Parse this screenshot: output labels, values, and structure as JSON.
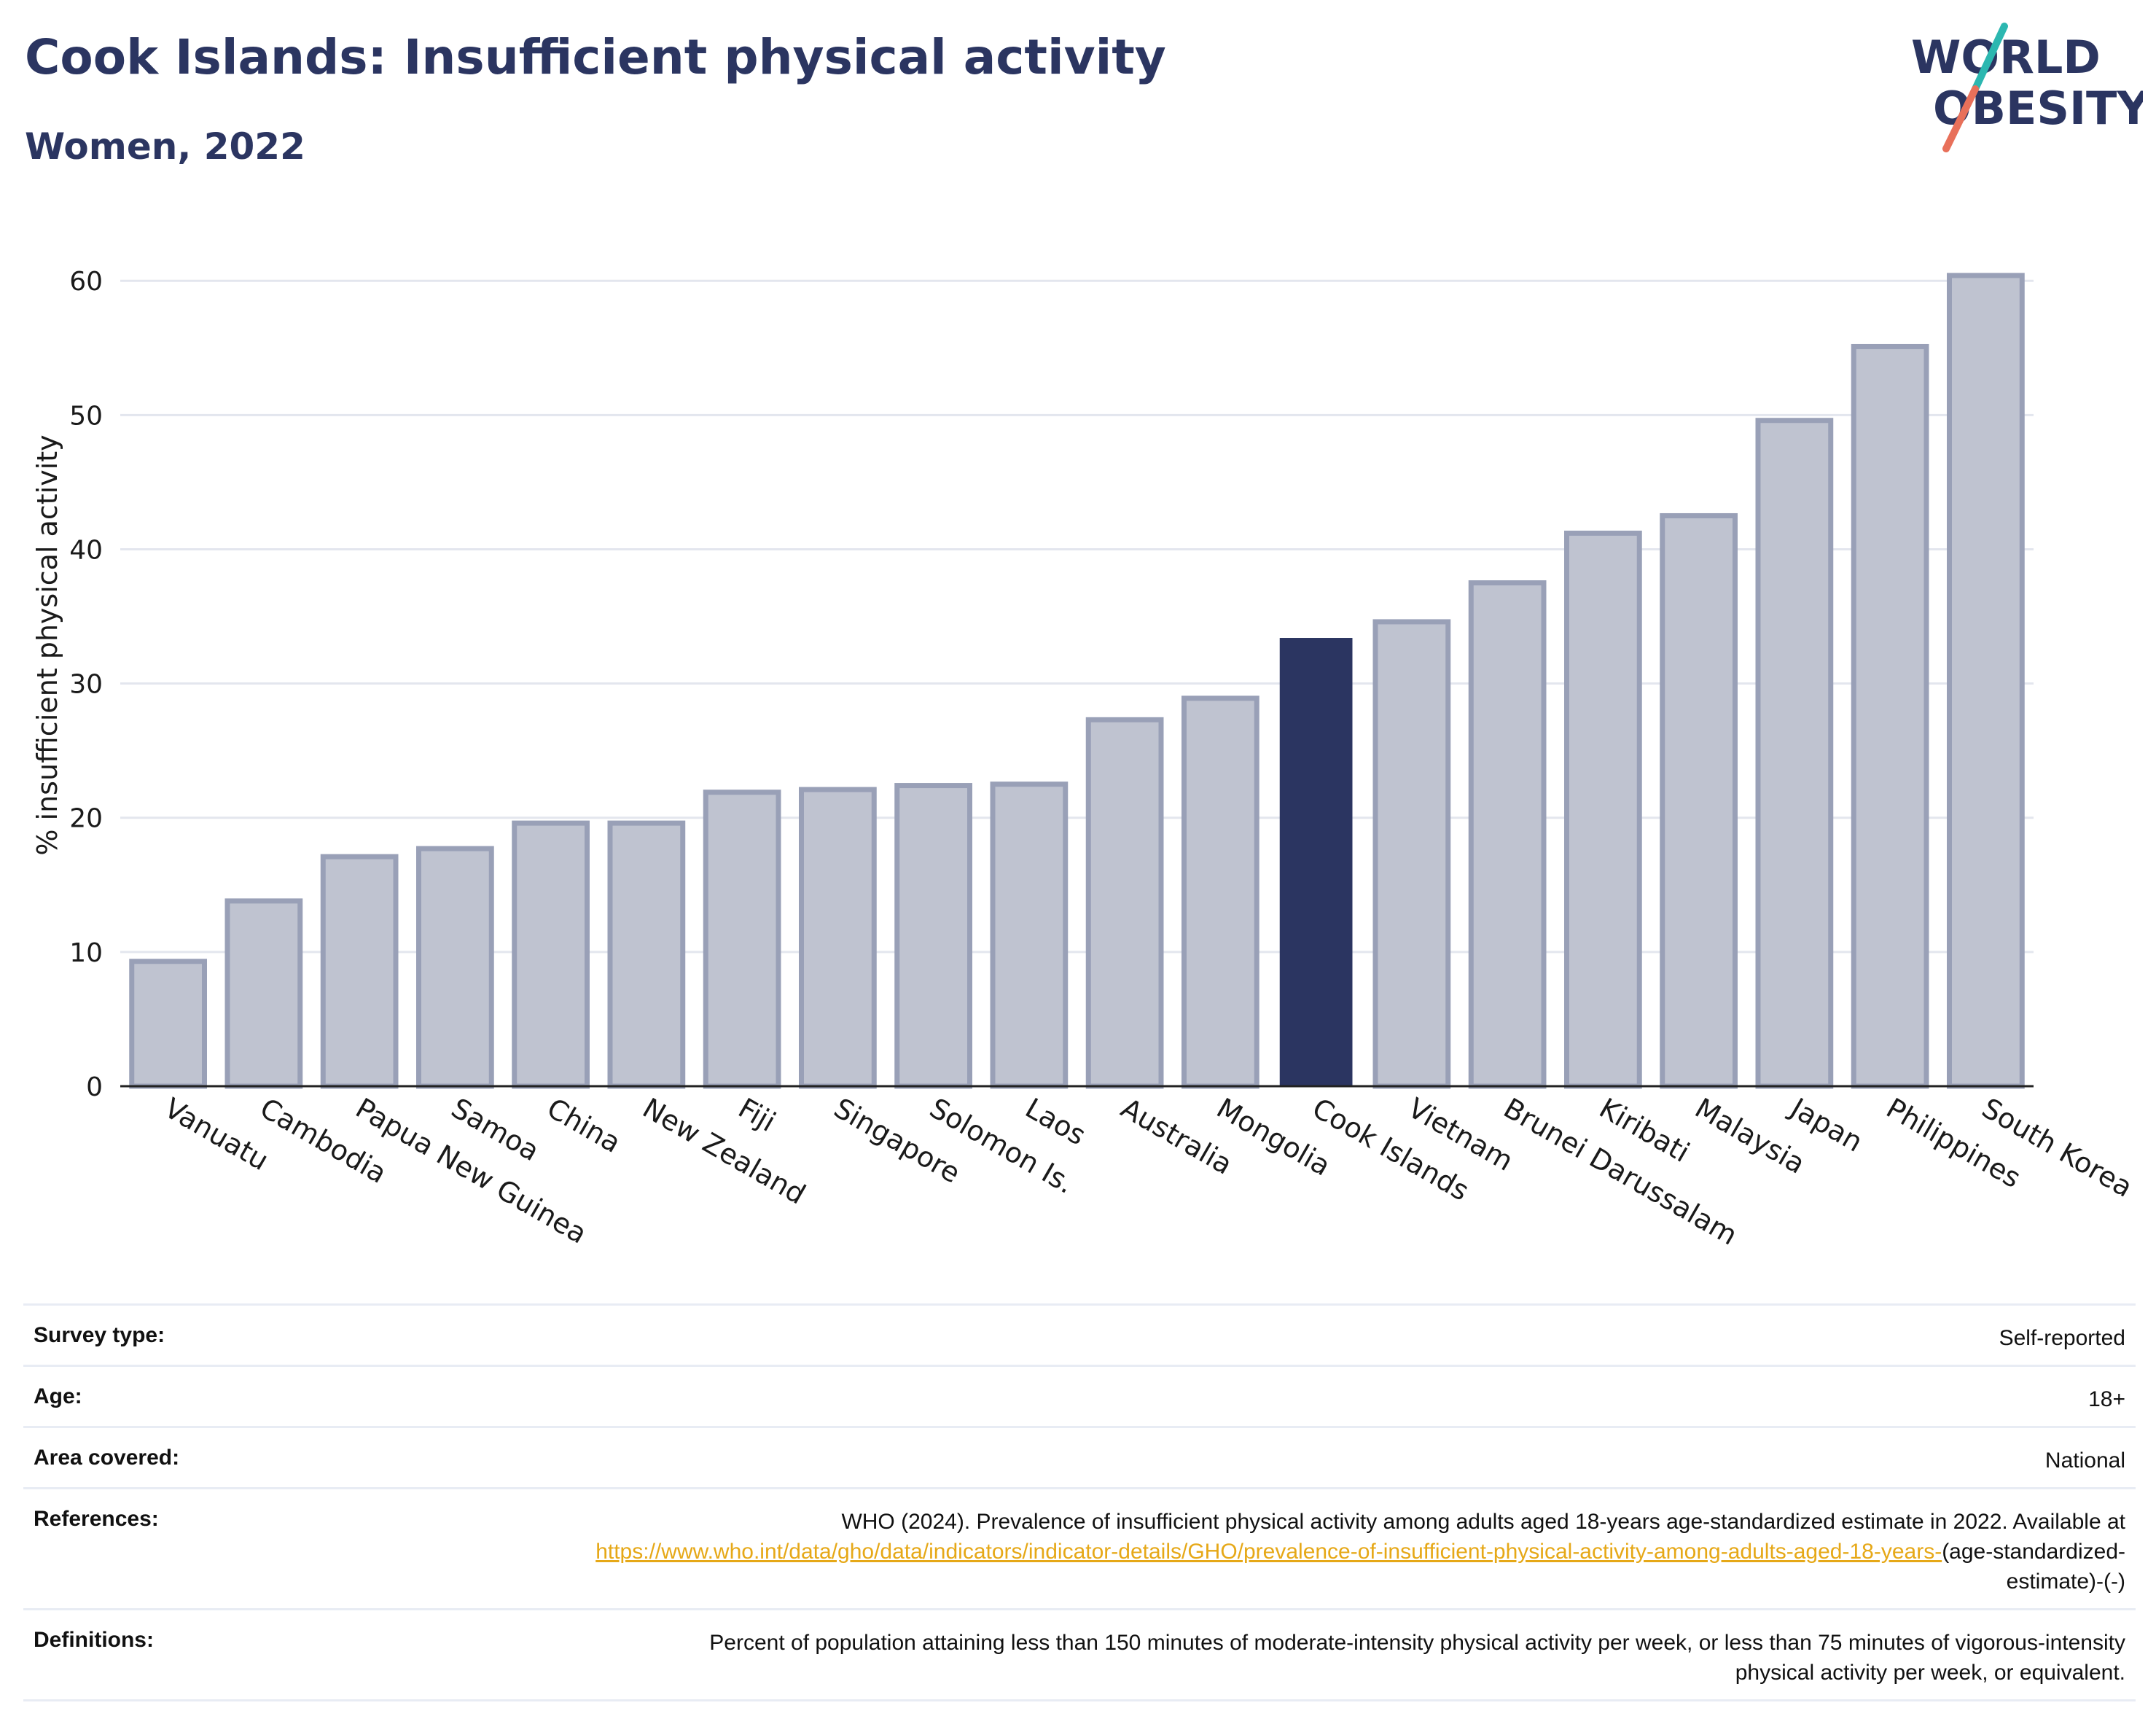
{
  "header": {
    "title": "Cook Islands: Insufficient physical activity",
    "subtitle": "Women, 2022",
    "logo_line1": "WORLD",
    "logo_line2": "OBESITY"
  },
  "chart_data": {
    "type": "bar",
    "title": "Cook Islands: Insufficient physical activity",
    "subtitle": "Women, 2022",
    "ylabel": "% insufficient physical activity",
    "xlabel": "",
    "ylim": [
      0,
      63
    ],
    "yticks": [
      0,
      10,
      20,
      30,
      40,
      50,
      60
    ],
    "grid": true,
    "highlight": "Cook Islands",
    "colors": {
      "bar": "#bfc3d0",
      "bar_border": "#99a0b7",
      "highlight": "#2b3561"
    },
    "categories": [
      "Vanuatu",
      "Cambodia",
      "Papua New Guinea",
      "Samoa",
      "China",
      "New Zealand",
      "Fiji",
      "Singapore",
      "Solomon Is.",
      "Laos",
      "Australia",
      "Mongolia",
      "Cook Islands",
      "Vietnam",
      "Brunei Darussalam",
      "Kiribati",
      "Malaysia",
      "Japan",
      "Philippines",
      "South Korea"
    ],
    "values": [
      9.3,
      13.8,
      17.1,
      17.7,
      19.6,
      19.6,
      21.9,
      22.1,
      22.4,
      22.5,
      27.3,
      28.9,
      33.4,
      34.6,
      37.5,
      41.2,
      42.5,
      49.6,
      55.1,
      60.4
    ]
  },
  "metadata": {
    "rows": [
      {
        "label": "Survey type:",
        "value": "Self-reported"
      },
      {
        "label": "Age:",
        "value": "18+"
      },
      {
        "label": "Area covered:",
        "value": "National"
      }
    ],
    "references": {
      "label": "References:",
      "text": "WHO (2024). Prevalence of insufficient physical activity among adults aged 18-years age-standardized estimate in 2022. Available at",
      "link": "https://www.who.int/data/gho/data/indicators/indicator-details/GHO/prevalence-of-insufficient-physical-activity-among-adults-aged-18-years-",
      "suffix": "(age-standardized-estimate)-(-)"
    },
    "definitions": {
      "label": "Definitions:",
      "text": "Percent of population attaining less than 150 minutes of moderate-intensity physical activity per week, or less than 75 minutes of vigorous-intensity physical activity per week, or equivalent."
    }
  }
}
